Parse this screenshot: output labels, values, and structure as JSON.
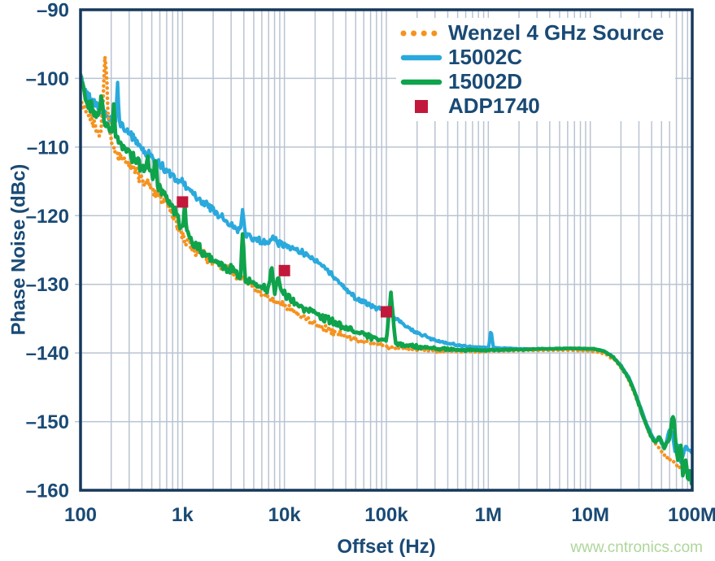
{
  "colors": {
    "navy": "#1a4a75",
    "frame": "#16395c",
    "grid": "#b9c4d2",
    "watermark": "#aed69b",
    "background": "#ffffff",
    "series_orange": "#f6921e",
    "series_blue": "#2aa9dd",
    "series_green": "#0fa34c",
    "series_red": "#c2183b"
  },
  "chart_data": {
    "type": "line",
    "title": "",
    "xlabel": "Offset (Hz)",
    "ylabel": "Phase Noise (dBc)",
    "xscale": "log",
    "xlim": [
      100,
      100000000
    ],
    "ylim": [
      -160,
      -90
    ],
    "grid": "on",
    "legend_position": "top-right",
    "watermark": "www.cntronics.com",
    "x_ticks": [
      {
        "v": 100,
        "label": "100"
      },
      {
        "v": 1000,
        "label": "1k"
      },
      {
        "v": 10000,
        "label": "10k"
      },
      {
        "v": 100000,
        "label": "100k"
      },
      {
        "v": 1000000,
        "label": "1M"
      },
      {
        "v": 10000000,
        "label": "10M"
      },
      {
        "v": 100000000,
        "label": "100M"
      }
    ],
    "y_ticks": [
      {
        "v": -90,
        "label": "–90"
      },
      {
        "v": -100,
        "label": "–100"
      },
      {
        "v": -110,
        "label": "–110"
      },
      {
        "v": -120,
        "label": "–120"
      },
      {
        "v": -130,
        "label": "–130"
      },
      {
        "v": -140,
        "label": "–140"
      },
      {
        "v": -150,
        "label": "–150"
      },
      {
        "v": -160,
        "label": "–160"
      }
    ],
    "series": [
      {
        "name": "Wenzel 4 GHz Source",
        "color": "#f6921e",
        "style": "dotted",
        "width": 4.2,
        "z": 2,
        "noise": [
          [
            100,
            0.8
          ],
          [
            300,
            0.9
          ],
          [
            1000,
            0.8
          ],
          [
            5000,
            0.6
          ],
          [
            20000,
            0.45
          ],
          [
            100000,
            0.3
          ],
          [
            400000,
            0.12
          ],
          [
            1000000,
            0.05
          ],
          [
            10000000,
            0.03
          ],
          [
            100000000,
            0.25
          ]
        ],
        "points": [
          [
            100,
            -103.2
          ],
          [
            108,
            -104.2
          ],
          [
            118,
            -105.2
          ],
          [
            130,
            -106.2
          ],
          [
            145,
            -107.2
          ],
          [
            158,
            -107.9
          ],
          [
            166,
            -104
          ],
          [
            171,
            -99
          ],
          [
            175,
            -96.4
          ],
          [
            179,
            -98.5
          ],
          [
            184,
            -103.5
          ],
          [
            190,
            -107.5
          ],
          [
            200,
            -109.8
          ],
          [
            215,
            -110.6
          ],
          [
            235,
            -111.2
          ],
          [
            260,
            -111.7
          ],
          [
            290,
            -112.4
          ],
          [
            330,
            -113.3
          ],
          [
            380,
            -114.4
          ],
          [
            440,
            -115.3
          ],
          [
            500,
            -116
          ],
          [
            570,
            -116.9
          ],
          [
            650,
            -117.8
          ],
          [
            740,
            -119
          ],
          [
            840,
            -120.7
          ],
          [
            950,
            -122.4
          ],
          [
            1100,
            -123.9
          ],
          [
            1300,
            -124.8
          ],
          [
            1600,
            -125.6
          ],
          [
            2000,
            -126.6
          ],
          [
            2500,
            -127.4
          ],
          [
            3200,
            -128.4
          ],
          [
            4000,
            -129.4
          ],
          [
            5000,
            -130.4
          ],
          [
            6500,
            -131.5
          ],
          [
            8000,
            -132.3
          ],
          [
            10000,
            -133.2
          ],
          [
            13000,
            -134.2
          ],
          [
            17000,
            -135.2
          ],
          [
            22000,
            -136
          ],
          [
            30000,
            -136.9
          ],
          [
            40000,
            -137.6
          ],
          [
            55000,
            -138.2
          ],
          [
            75000,
            -138.6
          ],
          [
            100000,
            -139
          ],
          [
            140000,
            -139.3
          ],
          [
            200000,
            -139.5
          ],
          [
            300000,
            -139.7
          ],
          [
            500000,
            -139.8
          ],
          [
            800000,
            -139.8
          ],
          [
            1500000,
            -139.7
          ],
          [
            3000000,
            -139.6
          ],
          [
            6000000,
            -139.6
          ],
          [
            10000000,
            -139.7
          ],
          [
            14000000,
            -140.1
          ],
          [
            18000000,
            -141.2
          ],
          [
            23000000,
            -143.4
          ],
          [
            28000000,
            -146.3
          ],
          [
            33000000,
            -149.3
          ],
          [
            38000000,
            -151.8
          ],
          [
            43000000,
            -153.2
          ],
          [
            50000000,
            -154.3
          ],
          [
            58000000,
            -155.2
          ],
          [
            66000000,
            -155.9
          ],
          [
            75000000,
            -156.6
          ],
          [
            85000000,
            -157.3
          ],
          [
            100000000,
            -158.2
          ]
        ]
      },
      {
        "name": "15002C",
        "color": "#2aa9dd",
        "style": "solid",
        "width": 4.2,
        "z": 1,
        "noise": [
          [
            100,
            0.6
          ],
          [
            300,
            0.7
          ],
          [
            1000,
            0.55
          ],
          [
            10000,
            0.4
          ],
          [
            100000,
            0.3
          ],
          [
            500000,
            0.12
          ],
          [
            1000000,
            0.05
          ],
          [
            10000000,
            0.04
          ],
          [
            100000000,
            0.15
          ]
        ],
        "points": [
          [
            100,
            -99.6
          ],
          [
            110,
            -101.6
          ],
          [
            122,
            -102.8
          ],
          [
            138,
            -103.8
          ],
          [
            158,
            -104.8
          ],
          [
            180,
            -105.5
          ],
          [
            205,
            -106.2
          ],
          [
            222,
            -106.5
          ],
          [
            230,
            -100.3
          ],
          [
            240,
            -106.5
          ],
          [
            265,
            -107
          ],
          [
            300,
            -107.9
          ],
          [
            345,
            -109
          ],
          [
            400,
            -110.2
          ],
          [
            460,
            -111.1
          ],
          [
            530,
            -111.9
          ],
          [
            620,
            -112.8
          ],
          [
            720,
            -113.6
          ],
          [
            850,
            -114.5
          ],
          [
            1000,
            -115.3
          ],
          [
            1200,
            -116.4
          ],
          [
            1450,
            -117.5
          ],
          [
            1750,
            -118.5
          ],
          [
            2100,
            -119.4
          ],
          [
            2600,
            -120.6
          ],
          [
            3100,
            -121.5
          ],
          [
            3700,
            -122.4
          ],
          [
            3900,
            -119.3
          ],
          [
            4150,
            -122.9
          ],
          [
            4800,
            -123.3
          ],
          [
            5800,
            -123.7
          ],
          [
            7000,
            -123.9
          ],
          [
            7800,
            -123
          ],
          [
            8600,
            -124
          ],
          [
            10000,
            -124.3
          ],
          [
            12500,
            -124.8
          ],
          [
            15500,
            -125.4
          ],
          [
            19000,
            -126.2
          ],
          [
            23000,
            -127.1
          ],
          [
            28000,
            -128.3
          ],
          [
            34000,
            -129.6
          ],
          [
            41000,
            -130.9
          ],
          [
            50000,
            -131.9
          ],
          [
            62000,
            -132.7
          ],
          [
            78000,
            -133.3
          ],
          [
            100000,
            -133.9
          ],
          [
            125000,
            -135
          ],
          [
            155000,
            -136.1
          ],
          [
            190000,
            -136.9
          ],
          [
            240000,
            -137.6
          ],
          [
            310000,
            -138.2
          ],
          [
            400000,
            -138.6
          ],
          [
            520000,
            -138.9
          ],
          [
            680000,
            -139.1
          ],
          [
            900000,
            -139.2
          ],
          [
            1010000,
            -139.2
          ],
          [
            1060000,
            -136.5
          ],
          [
            1120000,
            -139.2
          ],
          [
            1400000,
            -139.3
          ],
          [
            2000000,
            -139.4
          ],
          [
            3000000,
            -139.45
          ],
          [
            5000000,
            -139.4
          ],
          [
            7500000,
            -139.35
          ],
          [
            10000000,
            -139.4
          ],
          [
            13000000,
            -139.6
          ],
          [
            16000000,
            -140.3
          ],
          [
            20000000,
            -141.8
          ],
          [
            24000000,
            -143.6
          ],
          [
            28000000,
            -146
          ],
          [
            32000000,
            -148.4
          ],
          [
            36000000,
            -150.5
          ],
          [
            40000000,
            -152
          ],
          [
            44000000,
            -152.9
          ],
          [
            47000000,
            -152.3
          ],
          [
            52000000,
            -153.6
          ],
          [
            56000000,
            -153
          ],
          [
            60000000,
            -151
          ],
          [
            64000000,
            -151.8
          ],
          [
            68000000,
            -154.6
          ],
          [
            72000000,
            -153.2
          ],
          [
            77000000,
            -156
          ],
          [
            82000000,
            -154.6
          ],
          [
            87000000,
            -153.6
          ],
          [
            93000000,
            -154.2
          ],
          [
            100000000,
            -154.4
          ]
        ]
      },
      {
        "name": "15002D",
        "color": "#0fa34c",
        "style": "solid",
        "width": 4.6,
        "z": 3,
        "noise": [
          [
            100,
            0.8
          ],
          [
            300,
            0.9
          ],
          [
            1000,
            0.8
          ],
          [
            10000,
            0.6
          ],
          [
            100000,
            0.35
          ],
          [
            500000,
            0.15
          ],
          [
            1000000,
            0.07
          ],
          [
            10000000,
            0.04
          ],
          [
            100000000,
            0.2
          ]
        ],
        "points": [
          [
            100,
            -99.4
          ],
          [
            106,
            -101.8
          ],
          [
            114,
            -103
          ],
          [
            125,
            -103.9
          ],
          [
            140,
            -104.9
          ],
          [
            152,
            -105.5
          ],
          [
            160,
            -102
          ],
          [
            170,
            -106.1
          ],
          [
            185,
            -106.9
          ],
          [
            205,
            -107.8
          ],
          [
            212,
            -103.3
          ],
          [
            222,
            -108.5
          ],
          [
            245,
            -109.2
          ],
          [
            275,
            -110.1
          ],
          [
            310,
            -111
          ],
          [
            355,
            -112
          ],
          [
            400,
            -112.8
          ],
          [
            440,
            -113.4
          ],
          [
            455,
            -111.2
          ],
          [
            475,
            -113.9
          ],
          [
            520,
            -114.4
          ],
          [
            545,
            -111.9
          ],
          [
            570,
            -115.2
          ],
          [
            640,
            -116.3
          ],
          [
            720,
            -117.6
          ],
          [
            810,
            -119
          ],
          [
            900,
            -120.4
          ],
          [
            1000,
            -121.7
          ],
          [
            1045,
            -118.3
          ],
          [
            1100,
            -122.5
          ],
          [
            1300,
            -123.9
          ],
          [
            1600,
            -125.2
          ],
          [
            2000,
            -126.3
          ],
          [
            2500,
            -127.2
          ],
          [
            3100,
            -128
          ],
          [
            3700,
            -128.8
          ],
          [
            3900,
            -122.3
          ],
          [
            4150,
            -129.3
          ],
          [
            4800,
            -129.8
          ],
          [
            5800,
            -130.3
          ],
          [
            7000,
            -130.7
          ],
          [
            7500,
            -127.6
          ],
          [
            8000,
            -130.9
          ],
          [
            8800,
            -128.5
          ],
          [
            9400,
            -131.2
          ],
          [
            10000,
            -131.4
          ],
          [
            12500,
            -132.5
          ],
          [
            15500,
            -133.4
          ],
          [
            19000,
            -134.1
          ],
          [
            23000,
            -134.7
          ],
          [
            28000,
            -135.4
          ],
          [
            34000,
            -135.9
          ],
          [
            41000,
            -136.5
          ],
          [
            50000,
            -137
          ],
          [
            62000,
            -137.4
          ],
          [
            78000,
            -137.9
          ],
          [
            100000,
            -138.2
          ],
          [
            111000,
            -131
          ],
          [
            122000,
            -138.5
          ],
          [
            150000,
            -138.8
          ],
          [
            200000,
            -139.1
          ],
          [
            280000,
            -139.3
          ],
          [
            400000,
            -139.5
          ],
          [
            600000,
            -139.6
          ],
          [
            900000,
            -139.6
          ],
          [
            1400000,
            -139.55
          ],
          [
            2200000,
            -139.5
          ],
          [
            3500000,
            -139.4
          ],
          [
            5500000,
            -139.35
          ],
          [
            8000000,
            -139.35
          ],
          [
            11000000,
            -139.4
          ],
          [
            14000000,
            -139.8
          ],
          [
            17000000,
            -140.7
          ],
          [
            20000000,
            -141.9
          ],
          [
            24000000,
            -143.8
          ],
          [
            28000000,
            -146.2
          ],
          [
            32000000,
            -148.7
          ],
          [
            36000000,
            -150.8
          ],
          [
            40000000,
            -152.3
          ],
          [
            44000000,
            -153
          ],
          [
            47000000,
            -152.2
          ],
          [
            50000000,
            -152.9
          ],
          [
            53000000,
            -153.9
          ],
          [
            56000000,
            -153.2
          ],
          [
            60000000,
            -152.5
          ],
          [
            64000000,
            -149
          ],
          [
            66000000,
            -149.4
          ],
          [
            69000000,
            -153.2
          ],
          [
            72000000,
            -155.7
          ],
          [
            75000000,
            -153.8
          ],
          [
            78000000,
            -153.2
          ],
          [
            81000000,
            -158.2
          ],
          [
            84000000,
            -156.2
          ],
          [
            87000000,
            -155.3
          ],
          [
            91000000,
            -158.9
          ],
          [
            95000000,
            -157
          ],
          [
            100000000,
            -159.8
          ]
        ]
      },
      {
        "name": "ADP1740",
        "color": "#c2183b",
        "style": "squares",
        "width": 14,
        "z": 4,
        "points": [
          [
            1000,
            -118
          ],
          [
            10000,
            -128
          ],
          [
            100000,
            -134
          ]
        ]
      }
    ]
  }
}
